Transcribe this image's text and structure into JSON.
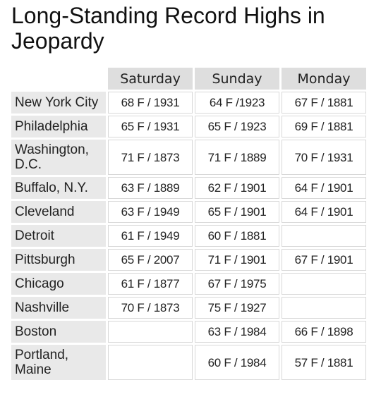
{
  "header": {
    "title": "Long-Standing Record Highs in Jeopardy"
  },
  "table": {
    "columns": [
      "Saturday",
      "Sunday",
      "Monday"
    ],
    "rows": [
      [
        "New York City",
        "68 F / 1931",
        "64 F /1923",
        "67 F / 1881"
      ],
      [
        "Philadelphia",
        "65 F / 1931",
        "65 F / 1923",
        "69 F / 1881"
      ],
      [
        "Washington, D.C.",
        "71 F / 1873",
        "71 F / 1889",
        "70 F / 1931"
      ],
      [
        "Buffalo, N.Y.",
        "63 F / 1889",
        "62 F / 1901",
        "64 F / 1901"
      ],
      [
        "Cleveland",
        "63 F / 1949",
        "65 F / 1901",
        "64 F / 1901"
      ],
      [
        "Detroit",
        "61 F / 1949",
        "60 F / 1881",
        null
      ],
      [
        "Pittsburgh",
        "65 F / 2007",
        "71 F / 1901",
        "67 F / 1901"
      ],
      [
        "Chicago",
        "61 F / 1877",
        "67 F / 1975",
        null
      ],
      [
        "Nashville",
        "70 F / 1873",
        "75 F / 1927",
        null
      ],
      [
        "Boston",
        null,
        "63 F / 1984",
        "66 F / 1898"
      ],
      [
        "Portland, Maine",
        null,
        "60 F / 1984",
        "57 F / 1881"
      ]
    ]
  }
}
